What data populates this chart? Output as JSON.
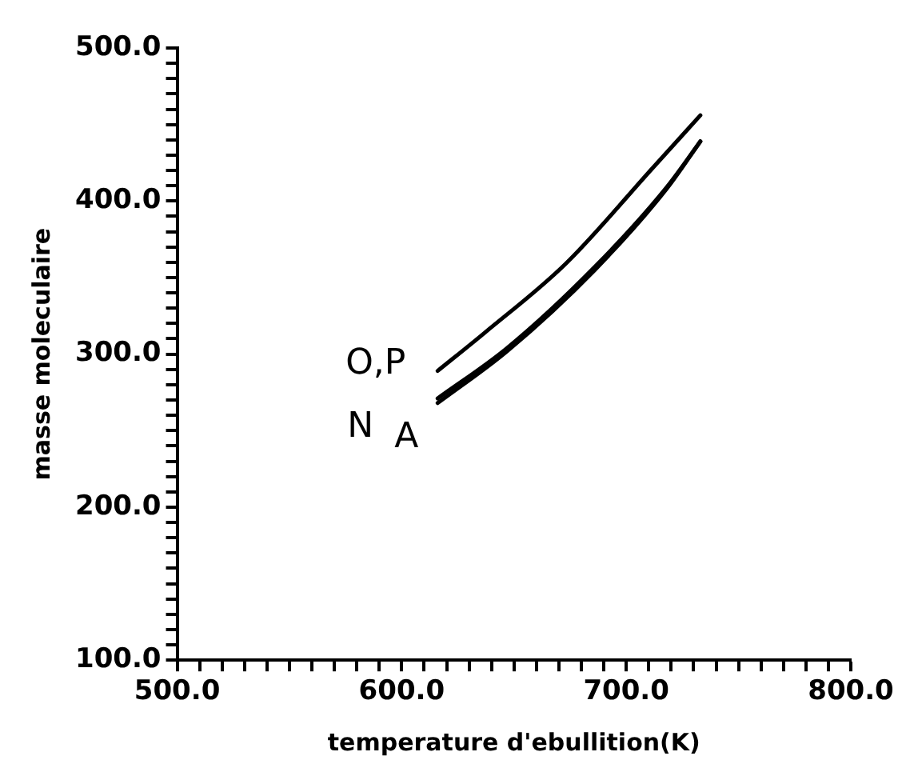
{
  "chart_data": {
    "type": "line",
    "xlabel": "temperature d'ebullition(K)",
    "ylabel": "masse moleculaire",
    "xlim": [
      500,
      800
    ],
    "ylim": [
      100,
      500
    ],
    "xticks": [
      {
        "value": 500,
        "label": "500.0"
      },
      {
        "value": 510,
        "label": null
      },
      {
        "value": 520,
        "label": null
      },
      {
        "value": 530,
        "label": null
      },
      {
        "value": 540,
        "label": null
      },
      {
        "value": 550,
        "label": null
      },
      {
        "value": 560,
        "label": null
      },
      {
        "value": 570,
        "label": null
      },
      {
        "value": 580,
        "label": null
      },
      {
        "value": 590,
        "label": null
      },
      {
        "value": 600,
        "label": "600.0"
      },
      {
        "value": 610,
        "label": null
      },
      {
        "value": 620,
        "label": null
      },
      {
        "value": 630,
        "label": null
      },
      {
        "value": 640,
        "label": null
      },
      {
        "value": 650,
        "label": null
      },
      {
        "value": 660,
        "label": null
      },
      {
        "value": 670,
        "label": null
      },
      {
        "value": 680,
        "label": null
      },
      {
        "value": 690,
        "label": null
      },
      {
        "value": 700,
        "label": "700.0"
      },
      {
        "value": 710,
        "label": null
      },
      {
        "value": 720,
        "label": null
      },
      {
        "value": 730,
        "label": null
      },
      {
        "value": 740,
        "label": null
      },
      {
        "value": 750,
        "label": null
      },
      {
        "value": 760,
        "label": null
      },
      {
        "value": 770,
        "label": null
      },
      {
        "value": 780,
        "label": null
      },
      {
        "value": 790,
        "label": null
      },
      {
        "value": 800,
        "label": "800.0"
      }
    ],
    "yticks": [
      {
        "value": 100,
        "label": "100.0"
      },
      {
        "value": 110,
        "label": null
      },
      {
        "value": 120,
        "label": null
      },
      {
        "value": 130,
        "label": null
      },
      {
        "value": 140,
        "label": null
      },
      {
        "value": 150,
        "label": null
      },
      {
        "value": 160,
        "label": null
      },
      {
        "value": 170,
        "label": null
      },
      {
        "value": 180,
        "label": null
      },
      {
        "value": 190,
        "label": null
      },
      {
        "value": 200,
        "label": "200.0"
      },
      {
        "value": 210,
        "label": null
      },
      {
        "value": 220,
        "label": null
      },
      {
        "value": 230,
        "label": null
      },
      {
        "value": 240,
        "label": null
      },
      {
        "value": 250,
        "label": null
      },
      {
        "value": 260,
        "label": null
      },
      {
        "value": 270,
        "label": null
      },
      {
        "value": 280,
        "label": null
      },
      {
        "value": 290,
        "label": null
      },
      {
        "value": 300,
        "label": "300.0"
      },
      {
        "value": 310,
        "label": null
      },
      {
        "value": 320,
        "label": null
      },
      {
        "value": 330,
        "label": null
      },
      {
        "value": 340,
        "label": null
      },
      {
        "value": 350,
        "label": null
      },
      {
        "value": 360,
        "label": null
      },
      {
        "value": 370,
        "label": null
      },
      {
        "value": 380,
        "label": null
      },
      {
        "value": 390,
        "label": null
      },
      {
        "value": 400,
        "label": "400.0"
      },
      {
        "value": 410,
        "label": null
      },
      {
        "value": 420,
        "label": null
      },
      {
        "value": 430,
        "label": null
      },
      {
        "value": 440,
        "label": null
      },
      {
        "value": 450,
        "label": null
      },
      {
        "value": 460,
        "label": null
      },
      {
        "value": 470,
        "label": null
      },
      {
        "value": 480,
        "label": null
      },
      {
        "value": 490,
        "label": null
      },
      {
        "value": 500,
        "label": "500.0"
      }
    ],
    "grid": false,
    "legend": false,
    "marker": "none",
    "line_style": "solid",
    "series": [
      {
        "name": "O,P",
        "color": "#000000",
        "x": [
          616,
          637,
          673,
          712,
          733
        ],
        "values": [
          289,
          314,
          359,
          422,
          456
        ]
      },
      {
        "name": "N",
        "color": "#000000",
        "x": [
          616,
          647,
          686,
          718,
          733
        ],
        "values": [
          271,
          304,
          357,
          409,
          439
        ]
      },
      {
        "name": "A",
        "color": "#000000",
        "x": [
          616,
          647,
          686,
          718,
          733
        ],
        "values": [
          268,
          302,
          355,
          408,
          439
        ]
      }
    ]
  }
}
